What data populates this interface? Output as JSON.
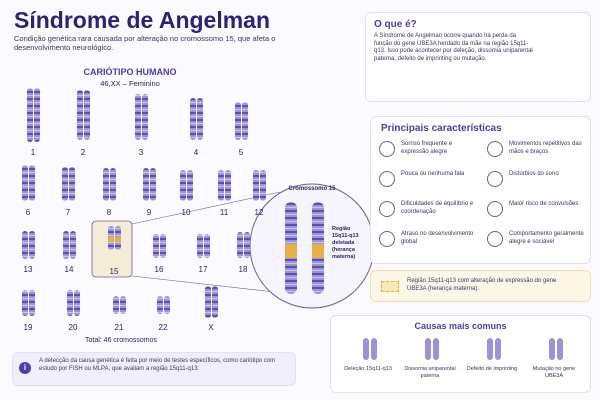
{
  "header": {
    "title": "Síndrome de Angelman",
    "subtitle": "Condição genética rara causada por alteração no cromossomo 15, que afeta o desenvolvimento neurológico."
  },
  "karyotype": {
    "title": "CARIÓTIPO HUMANO",
    "subtitle": "46,XX – Feminino",
    "labels": [
      "1",
      "2",
      "3",
      "4",
      "5",
      "6",
      "7",
      "8",
      "9",
      "10",
      "11",
      "12",
      "13",
      "14",
      "15",
      "16",
      "17",
      "18",
      "19",
      "20",
      "21",
      "22",
      "X"
    ],
    "total": "Total: 46 cromossomos"
  },
  "zoom": {
    "title": "Cromossomo 15",
    "region": "Região 15q11-q13 deletada (herança materna)"
  },
  "note": "A detecção da causa genética é feita por meio de testes específicos, como cariótipo com estudo por FISH ou MLPA, que avaliam a região 15q11-q13.",
  "what": {
    "title": "O que é?",
    "text": "A Síndrome de Angelman ocorre quando há perda da função do gene UBE3A herdado da mãe na região 15q11-q13. Isso pode acontecer por deleção, dissomia uniparental paterna, defeito de imprinting ou mutação."
  },
  "features": {
    "title": "Principais características",
    "items": [
      "Sorriso frequente e expressão alegre",
      "Movimentos repetitivos das mãos e braços",
      "Pouca ou nenhuma fala",
      "Distúrbios do sono",
      "Dificuldades de equilíbrio e coordenação",
      "Maior risco de convulsões",
      "Atraso no desenvolvimento global",
      "Comportamento geralmente alegre e sociável"
    ]
  },
  "legend": "Região 15q11-q13 com alteração de expressão do gene UBE3A (herança materna).",
  "causes": {
    "title": "Causas mais comuns",
    "items": [
      "Deleção 15q11-q13",
      "Dissomia uniparental paterna",
      "Defeito de imprinting",
      "Mutação no gene UBE3A"
    ]
  }
}
